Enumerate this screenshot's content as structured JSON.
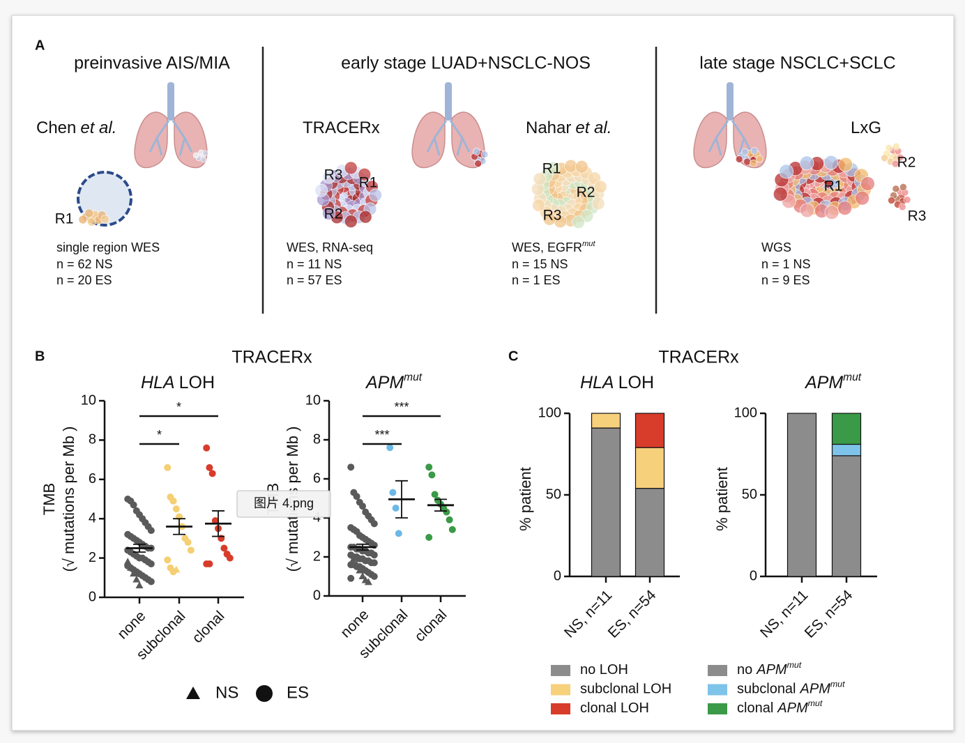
{
  "tooltip": "图片 4.png",
  "panel_a": {
    "label": "A",
    "sections": [
      {
        "title": "preinvasive AIS/MIA"
      },
      {
        "title": "early stage LUAD+NSCLC-NOS"
      },
      {
        "title": "late stage NSCLC+SCLC"
      }
    ],
    "studies": [
      {
        "name": "Chen",
        "name_italic": "et al.",
        "regions": [
          "R1"
        ],
        "method": "single region WES",
        "counts": [
          "n = 62 NS",
          "n = 20 ES"
        ]
      },
      {
        "name": "TRACERx",
        "regions": [
          "R3",
          "R1",
          "R2"
        ],
        "method": "WES, RNA-seq",
        "counts": [
          "n = 11 NS",
          "n = 57 ES"
        ]
      },
      {
        "name": "Nahar",
        "name_italic": "et al.",
        "regions": [
          "R1",
          "R2",
          "R3"
        ],
        "method": "WES, EGFR",
        "method_sup": "mut",
        "counts": [
          "n = 15 NS",
          "n = 1 ES"
        ]
      },
      {
        "name": "LxG",
        "regions": [
          "R1",
          "R2",
          "R3"
        ],
        "method": "WGS",
        "counts": [
          "n = 1 NS",
          "n = 9 ES"
        ]
      }
    ]
  },
  "panel_b": {
    "label": "B",
    "title": "TRACERx",
    "marker_legend": [
      {
        "name": "NS",
        "shape": "triangle"
      },
      {
        "name": "ES",
        "shape": "circle"
      }
    ]
  },
  "panel_c": {
    "label": "C",
    "title": "TRACERx"
  },
  "chart_data": [
    {
      "type": "dotplot",
      "title_italic": "HLA",
      "title": "LOH",
      "ylabel": [
        "TMB",
        "(√ mutations per Mb )"
      ],
      "categories": [
        "none",
        "subclonal",
        "clonal"
      ],
      "ylim": [
        0,
        10
      ],
      "yticks": [
        0,
        2,
        4,
        6,
        8,
        10
      ],
      "groups": [
        {
          "color": "#5a5a5a",
          "circle": [
            5.0,
            4.9,
            4.7,
            4.4,
            4.2,
            4.0,
            3.8,
            3.6,
            3.4,
            3.2,
            3.1,
            3.0,
            2.9,
            2.8,
            2.7,
            2.6,
            2.5,
            2.5,
            2.4,
            2.3,
            2.2,
            2.1,
            2.0,
            2.0,
            1.9,
            1.8,
            1.7,
            1.6,
            1.5,
            1.4,
            1.3,
            1.2,
            1.1,
            1.0,
            0.9,
            0.8
          ],
          "triangle": [
            1.8,
            1.5,
            1.2,
            0.9,
            0.6
          ]
        },
        {
          "color": "#f5cf73",
          "circle": [
            6.6,
            5.1,
            4.9,
            4.5,
            4.1,
            3.6,
            3.0,
            2.8,
            2.4,
            1.9,
            1.5,
            1.3
          ],
          "triangle": [
            1.4
          ]
        },
        {
          "color": "#d83c2b",
          "circle": [
            7.6,
            6.6,
            6.3,
            3.9,
            3.5,
            3.0,
            2.5,
            2.2,
            2.0,
            1.7,
            1.7
          ],
          "triangle": []
        }
      ],
      "means": [
        2.5,
        3.6,
        3.75
      ],
      "sems": [
        0.2,
        0.4,
        0.65
      ],
      "significance": [
        {
          "pair": [
            0,
            1
          ],
          "label": "*"
        },
        {
          "pair": [
            0,
            2
          ],
          "label": "*"
        }
      ]
    },
    {
      "type": "dotplot",
      "title_italic": "APM",
      "title_sup": "mut",
      "ylabel": [
        "TMB",
        "(√ mutations per Mb )"
      ],
      "categories": [
        "none",
        "subclonal",
        "clonal"
      ],
      "ylim": [
        0,
        10
      ],
      "yticks": [
        0,
        2,
        4,
        6,
        8,
        10
      ],
      "groups": [
        {
          "color": "#5a5a5a",
          "circle": [
            6.6,
            5.3,
            5.1,
            4.8,
            4.6,
            4.3,
            4.1,
            3.9,
            3.7,
            3.5,
            3.4,
            3.3,
            3.1,
            3.0,
            2.9,
            2.8,
            2.7,
            2.6,
            2.5,
            2.5,
            2.4,
            2.4,
            2.3,
            2.3,
            2.2,
            2.2,
            2.1,
            2.1,
            2.0,
            2.0,
            1.9,
            1.9,
            1.8,
            1.8,
            1.7,
            1.7,
            1.6,
            1.6,
            1.5,
            1.5,
            1.4,
            1.3,
            1.2,
            1.1,
            1.0,
            0.9
          ],
          "triangle": [
            1.9,
            1.6,
            1.3,
            1.0,
            0.8,
            0.7
          ]
        },
        {
          "color": "#6cb8e6",
          "circle": [
            7.6,
            5.3,
            4.5,
            3.2
          ],
          "triangle": []
        },
        {
          "color": "#3a9a47",
          "circle": [
            6.6,
            6.2,
            5.2,
            4.9,
            4.7,
            4.5,
            4.3,
            3.9,
            3.4,
            3.0
          ],
          "triangle": []
        }
      ],
      "means": [
        2.5,
        4.95,
        4.65
      ],
      "sems": [
        0.15,
        0.95,
        0.3
      ],
      "significance": [
        {
          "pair": [
            0,
            1
          ],
          "label": "***"
        },
        {
          "pair": [
            0,
            2
          ],
          "label": "***"
        }
      ]
    },
    {
      "type": "stacked_bar",
      "title_italic": "HLA",
      "title": "LOH",
      "ylabel": [
        "% patient"
      ],
      "categories": [
        "NS, n=11",
        "ES, n=54"
      ],
      "ylim": [
        0,
        100
      ],
      "yticks": [
        0,
        50,
        100
      ],
      "series": [
        {
          "name": "no LOH",
          "color": "#8c8c8c",
          "values": [
            91,
            54
          ]
        },
        {
          "name": "subclonal LOH",
          "color": "#f7d07c",
          "values": [
            9,
            25
          ]
        },
        {
          "name": "clonal LOH",
          "color": "#d83c2b",
          "values": [
            0,
            21
          ]
        }
      ]
    },
    {
      "type": "stacked_bar",
      "title_italic": "APM",
      "title_sup": "mut",
      "ylabel": [
        "% patient"
      ],
      "categories": [
        "NS, n=11",
        "ES, n=54"
      ],
      "ylim": [
        0,
        100
      ],
      "yticks": [
        0,
        50,
        100
      ],
      "series": [
        {
          "name": "no",
          "name_italic": "APM",
          "name_sup": "mut",
          "color": "#8c8c8c",
          "values": [
            100,
            74
          ]
        },
        {
          "name": "subclonal",
          "name_italic": "APM",
          "name_sup": "mut",
          "color": "#7ec3ea",
          "values": [
            0,
            7
          ]
        },
        {
          "name": "clonal",
          "name_italic": "APM",
          "name_sup": "mut",
          "color": "#3a9a47",
          "values": [
            0,
            19
          ]
        }
      ]
    }
  ]
}
